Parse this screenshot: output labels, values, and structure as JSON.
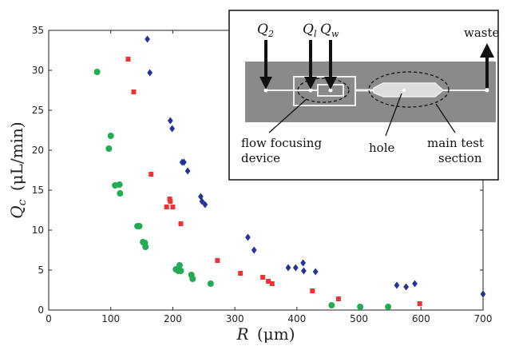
{
  "chart_data": {
    "type": "scatter",
    "xlabel": {
      "var": "R",
      "unit": "(μm)"
    },
    "ylabel": {
      "var": "Q",
      "sub": "c",
      "unit": "(μL/min)"
    },
    "xlim": [
      0,
      700
    ],
    "ylim": [
      0,
      35
    ],
    "xticks": [
      0,
      100,
      200,
      300,
      400,
      500,
      600,
      700
    ],
    "yticks": [
      0,
      5,
      10,
      15,
      20,
      25,
      30,
      35
    ],
    "grid": false,
    "series": [
      {
        "marker": "circle",
        "color": "#22aa55",
        "points": [
          [
            78,
            29.8
          ],
          [
            97,
            20.2
          ],
          [
            100,
            21.8
          ],
          [
            107,
            15.6
          ],
          [
            114,
            15.7
          ],
          [
            115,
            14.6
          ],
          [
            143,
            10.5
          ],
          [
            146,
            10.5
          ],
          [
            152,
            8.5
          ],
          [
            155,
            8.4
          ],
          [
            156,
            7.9
          ],
          [
            205,
            5.1
          ],
          [
            209,
            4.9
          ],
          [
            211,
            5.6
          ],
          [
            213,
            4.9
          ],
          [
            230,
            4.4
          ],
          [
            232,
            3.9
          ],
          [
            261,
            3.3
          ],
          [
            456,
            0.6
          ],
          [
            502,
            0.4
          ],
          [
            547,
            0.4
          ]
        ]
      },
      {
        "marker": "square",
        "color": "#ee3333",
        "points": [
          [
            128,
            31.4
          ],
          [
            137,
            27.3
          ],
          [
            165,
            17.0
          ],
          [
            190,
            12.9
          ],
          [
            195,
            13.9
          ],
          [
            196,
            13.6
          ],
          [
            200,
            12.9
          ],
          [
            213,
            10.8
          ],
          [
            272,
            6.2
          ],
          [
            309,
            4.6
          ],
          [
            345,
            4.1
          ],
          [
            354,
            3.6
          ],
          [
            360,
            3.3
          ],
          [
            425,
            2.4
          ],
          [
            467,
            1.4
          ],
          [
            598,
            0.8
          ]
        ]
      },
      {
        "marker": "diamond",
        "color": "#223399",
        "points": [
          [
            159,
            33.9
          ],
          [
            163,
            29.7
          ],
          [
            196,
            23.7
          ],
          [
            199,
            22.7
          ],
          [
            215,
            18.5
          ],
          [
            218,
            18.5
          ],
          [
            224,
            17.4
          ],
          [
            245,
            14.2
          ],
          [
            247,
            13.6
          ],
          [
            252,
            13.2
          ],
          [
            321,
            9.1
          ],
          [
            331,
            7.5
          ],
          [
            386,
            5.3
          ],
          [
            398,
            5.3
          ],
          [
            410,
            5.9
          ],
          [
            411,
            4.9
          ],
          [
            430,
            4.8
          ],
          [
            561,
            3.1
          ],
          [
            576,
            2.9
          ],
          [
            590,
            3.3
          ],
          [
            700,
            2.0
          ]
        ]
      }
    ]
  },
  "inset": {
    "labels": {
      "q2": "Q",
      "q2_sub": "2",
      "q1": "Q",
      "q1_sub": "l",
      "qw": "Q",
      "qw_sub": "w",
      "waste": "waste",
      "flow_focusing_1": "flow focusing",
      "flow_focusing_2": "device",
      "hole": "hole",
      "main_test_1": "main test",
      "main_test_2": "section"
    }
  }
}
